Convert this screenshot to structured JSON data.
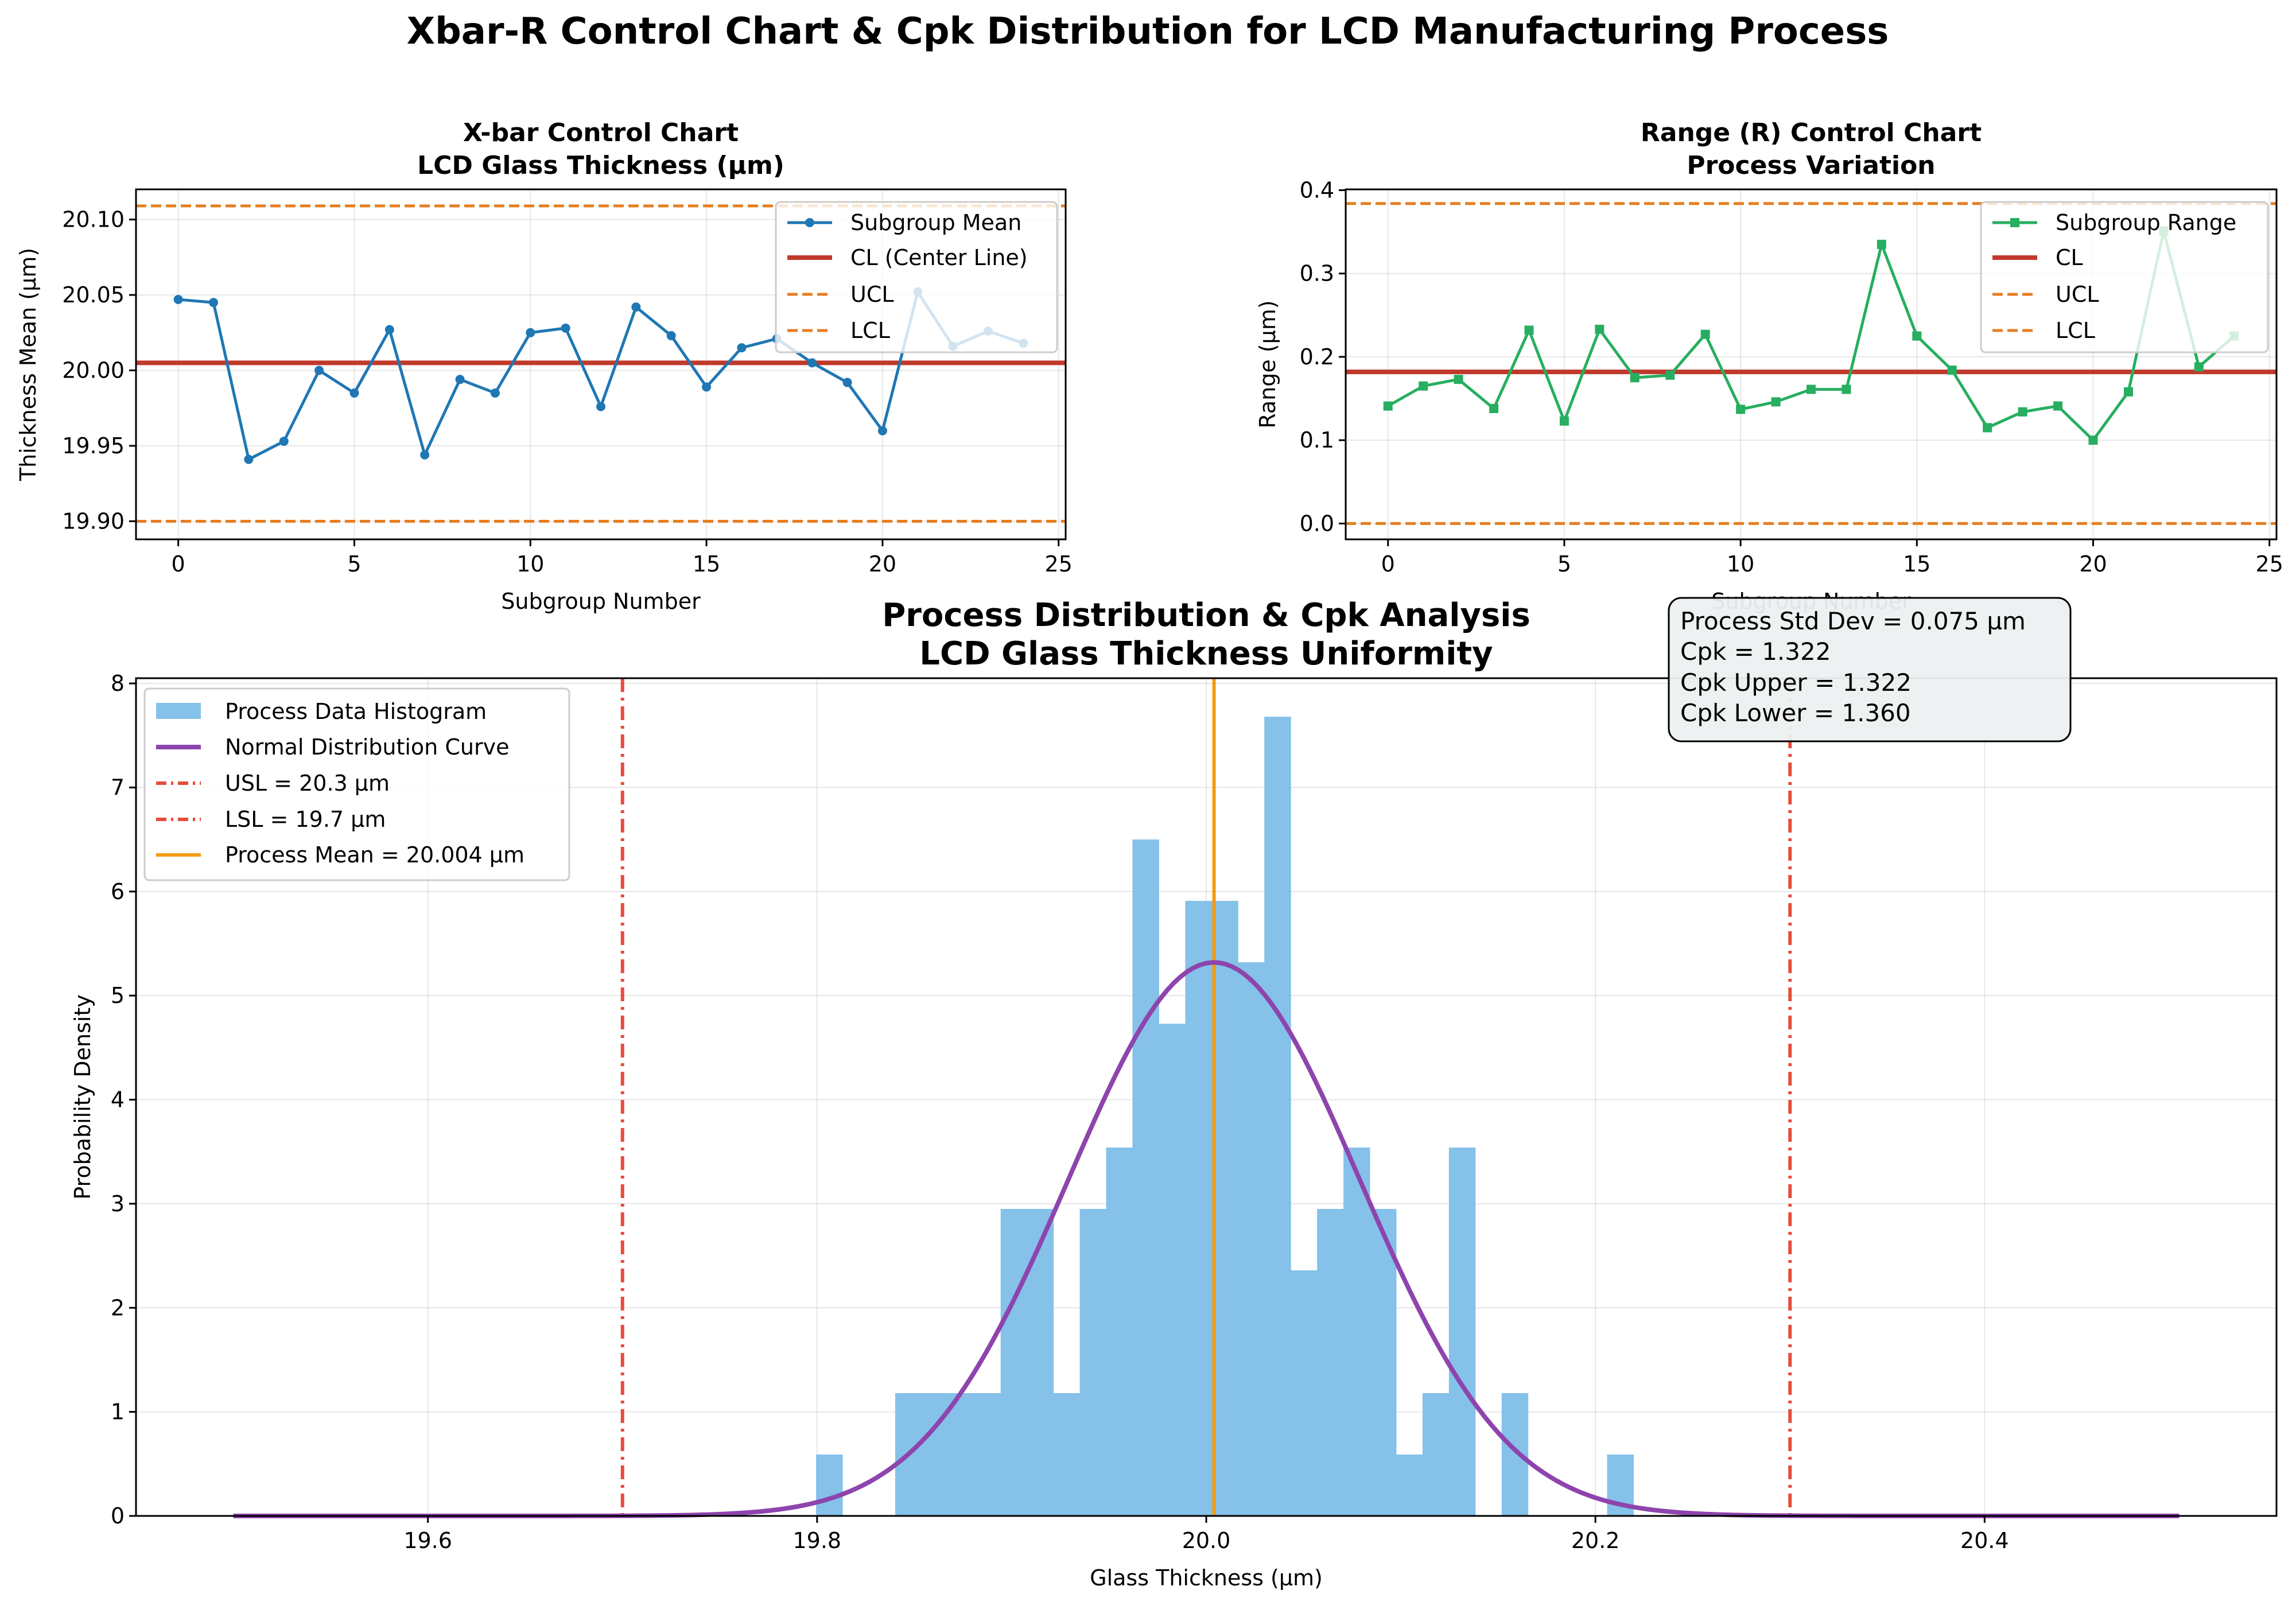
{
  "figure": {
    "suptitle": "Xbar-R Control Chart & Cpk Distribution for LCD Manufacturing Process"
  },
  "chart_data": [
    {
      "type": "line",
      "title_line1": "X-bar Control Chart",
      "title_line2": "LCD Glass Thickness (µm)",
      "xlabel": "Subgroup Number",
      "ylabel": "Thickness Mean (µm)",
      "xlim": [
        -1.2,
        25.2
      ],
      "ylim": [
        19.888,
        20.12
      ],
      "xticks": [
        0,
        5,
        10,
        15,
        20,
        25
      ],
      "yticks": [
        19.9,
        19.95,
        20.0,
        20.05,
        20.1
      ],
      "ytick_labels": [
        "19.90",
        "19.95",
        "20.00",
        "20.05",
        "20.10"
      ],
      "grid": true,
      "legend_position": "upper right",
      "x": [
        0,
        1,
        2,
        3,
        4,
        5,
        6,
        7,
        8,
        9,
        10,
        11,
        12,
        13,
        14,
        15,
        16,
        17,
        18,
        19,
        20,
        21,
        22,
        23,
        24
      ],
      "series": [
        {
          "name": "Subgroup Mean",
          "color": "#1f77b4",
          "marker": "circle",
          "values": [
            20.047,
            20.045,
            19.941,
            19.953,
            20.0,
            19.985,
            20.027,
            19.944,
            19.994,
            19.985,
            20.025,
            20.028,
            19.976,
            20.042,
            20.023,
            19.989,
            20.015,
            20.021,
            20.005,
            19.992,
            19.96,
            20.052,
            20.016,
            20.026,
            20.018
          ]
        }
      ],
      "reference_lines": [
        {
          "name": "CL (Center Line)",
          "value": 20.005,
          "color": "#c0392b",
          "style": "solid"
        },
        {
          "name": "UCL",
          "value": 20.109,
          "color": "#e67e22",
          "style": "dashed"
        },
        {
          "name": "LCL",
          "value": 19.9,
          "color": "#e67e22",
          "style": "dashed"
        }
      ]
    },
    {
      "type": "line",
      "title_line1": "Range (R) Control Chart",
      "title_line2": "Process Variation",
      "xlabel": "Subgroup Number",
      "ylabel": "Range (µm)",
      "xlim": [
        -1.2,
        25.2
      ],
      "ylim": [
        -0.019,
        0.401
      ],
      "xticks": [
        0,
        5,
        10,
        15,
        20,
        25
      ],
      "yticks": [
        0.0,
        0.1,
        0.2,
        0.3,
        0.4
      ],
      "ytick_labels": [
        "0.0",
        "0.1",
        "0.2",
        "0.3",
        "0.4"
      ],
      "grid": true,
      "legend_position": "upper right",
      "x": [
        0,
        1,
        2,
        3,
        4,
        5,
        6,
        7,
        8,
        9,
        10,
        11,
        12,
        13,
        14,
        15,
        16,
        17,
        18,
        19,
        20,
        21,
        22,
        23,
        24
      ],
      "series": [
        {
          "name": "Subgroup Range",
          "color": "#27ae60",
          "marker": "square",
          "values": [
            0.141,
            0.165,
            0.173,
            0.138,
            0.232,
            0.123,
            0.233,
            0.175,
            0.178,
            0.227,
            0.137,
            0.146,
            0.161,
            0.161,
            0.335,
            0.225,
            0.184,
            0.115,
            0.134,
            0.141,
            0.1,
            0.158,
            0.351,
            0.188,
            0.225
          ]
        }
      ],
      "reference_lines": [
        {
          "name": "CL",
          "value": 0.182,
          "color": "#c0392b",
          "style": "solid"
        },
        {
          "name": "UCL",
          "value": 0.384,
          "color": "#e67e22",
          "style": "dashed"
        },
        {
          "name": "LCL",
          "value": 0.0,
          "color": "#e67e22",
          "style": "dashed"
        }
      ]
    },
    {
      "type": "histogram",
      "title_line1": "Process Distribution & Cpk Analysis",
      "title_line2": "LCD Glass Thickness Uniformity",
      "xlabel": "Glass Thickness (µm)",
      "ylabel": "Probability Density",
      "xlim": [
        19.45,
        20.55
      ],
      "ylim": [
        0,
        8.05
      ],
      "xticks": [
        19.6,
        19.8,
        20.0,
        20.2,
        20.4
      ],
      "xtick_labels": [
        "19.6",
        "19.8",
        "20.0",
        "20.2",
        "20.4"
      ],
      "yticks": [
        0,
        1,
        2,
        3,
        4,
        5,
        6,
        7,
        8
      ],
      "grid": true,
      "legend_position": "upper left",
      "histogram": {
        "name": "Process Data Histogram",
        "color": "#85c1e9",
        "bin_start": 19.7995,
        "bin_width": 0.01355,
        "densities": [
          0.59,
          0,
          0,
          1.18,
          1.18,
          1.18,
          1.18,
          2.95,
          2.95,
          1.18,
          2.95,
          3.54,
          6.5,
          4.73,
          5.91,
          5.91,
          5.32,
          7.68,
          2.36,
          2.95,
          3.54,
          2.95,
          0.59,
          1.18,
          3.54,
          0,
          1.18,
          0,
          0,
          0,
          0.59
        ]
      },
      "normal_curve": {
        "name": "Normal Distribution Curve",
        "color": "#8e44ad",
        "mean": 20.004,
        "std": 0.075,
        "x_range": [
          19.5,
          20.5
        ]
      },
      "reference_lines": [
        {
          "name": "USL = 20.3 µm",
          "value": 20.3,
          "color": "#e74c3c",
          "style": "dashdot"
        },
        {
          "name": "LSL = 19.7 µm",
          "value": 19.7,
          "color": "#e74c3c",
          "style": "dashdot"
        },
        {
          "name": "Process Mean = 20.004 µm",
          "value": 20.004,
          "color": "#f39c12",
          "style": "solid"
        }
      ],
      "stats_box": [
        "Process Std Dev = 0.075 µm",
        "Cpk = 1.322",
        "Cpk Upper = 1.322",
        "Cpk Lower = 1.360"
      ]
    }
  ]
}
